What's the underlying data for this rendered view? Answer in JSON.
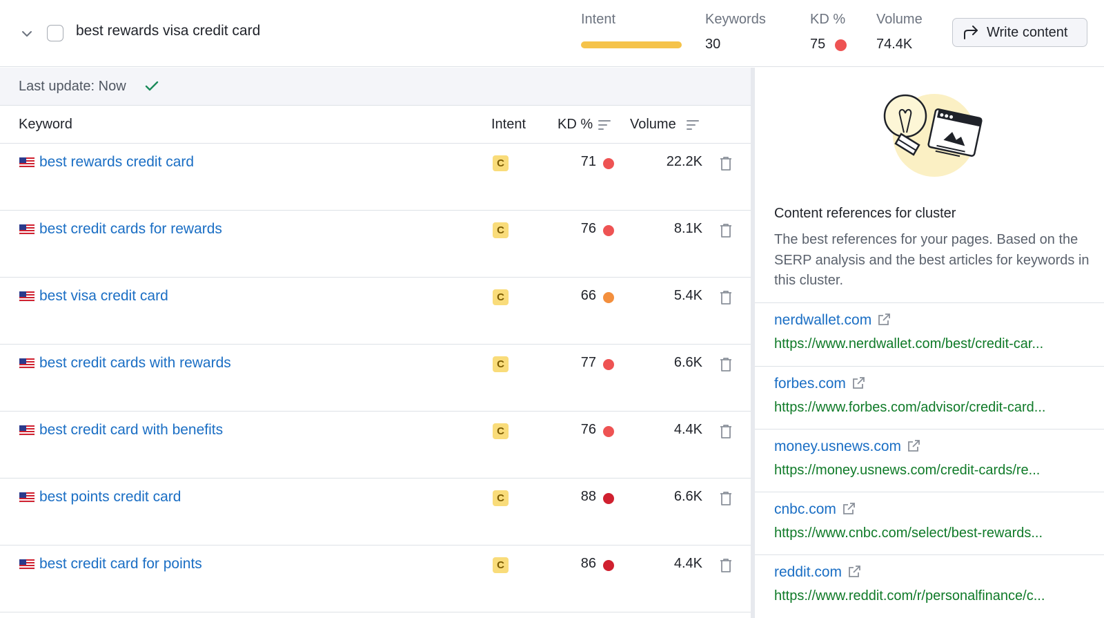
{
  "cluster": {
    "title": "best rewards visa credit card",
    "metrics": {
      "intent_label": "Intent",
      "keywords_label": "Keywords",
      "keywords_value": "30",
      "kd_label": "KD %",
      "kd_value": "75",
      "volume_label": "Volume",
      "volume_value": "74.4K"
    },
    "intent_color": "#f5c34a",
    "kd_color": "#ee5353",
    "write_button": "Write content"
  },
  "table": {
    "last_update": "Last update: Now",
    "headers": {
      "keyword": "Keyword",
      "intent": "Intent",
      "kd": "KD %",
      "volume": "Volume"
    },
    "rows": [
      {
        "keyword": "best rewards credit card",
        "intent": "C",
        "kd": "71",
        "kd_color": "#ee5353",
        "volume": "22.2K"
      },
      {
        "keyword": "best credit cards for rewards",
        "intent": "C",
        "kd": "76",
        "kd_color": "#ee5353",
        "volume": "8.1K"
      },
      {
        "keyword": "best visa credit card",
        "intent": "C",
        "kd": "66",
        "kd_color": "#f38f3d",
        "volume": "5.4K"
      },
      {
        "keyword": "best credit cards with rewards",
        "intent": "C",
        "kd": "77",
        "kd_color": "#ee5353",
        "volume": "6.6K"
      },
      {
        "keyword": "best credit card with benefits",
        "intent": "C",
        "kd": "76",
        "kd_color": "#ee5353",
        "volume": "4.4K"
      },
      {
        "keyword": "best points credit card",
        "intent": "C",
        "kd": "88",
        "kd_color": "#d0202f",
        "volume": "6.6K"
      },
      {
        "keyword": "best credit card for points",
        "intent": "C",
        "kd": "86",
        "kd_color": "#d0202f",
        "volume": "4.4K"
      }
    ]
  },
  "references": {
    "title": "Content references for cluster",
    "description": "The best references for your pages. Based on the SERP analysis and the best articles for keywords in this cluster.",
    "items": [
      {
        "domain": "nerdwallet.com",
        "url": "https://www.nerdwallet.com/best/credit-car..."
      },
      {
        "domain": "forbes.com",
        "url": "https://www.forbes.com/advisor/credit-card..."
      },
      {
        "domain": "money.usnews.com",
        "url": "https://money.usnews.com/credit-cards/re..."
      },
      {
        "domain": "cnbc.com",
        "url": "https://www.cnbc.com/select/best-rewards..."
      },
      {
        "domain": "reddit.com",
        "url": "https://www.reddit.com/r/personalfinance/c..."
      }
    ]
  },
  "icons": {
    "collapse": "chevron-down-icon",
    "select": "checkbox",
    "write": "share-arrow-icon",
    "update_status": "check-icon",
    "sort": "sort-icon",
    "country": "us-flag-icon",
    "delete": "trash-icon",
    "external": "external-link-icon",
    "illustration": "lightbulb-illustration"
  }
}
